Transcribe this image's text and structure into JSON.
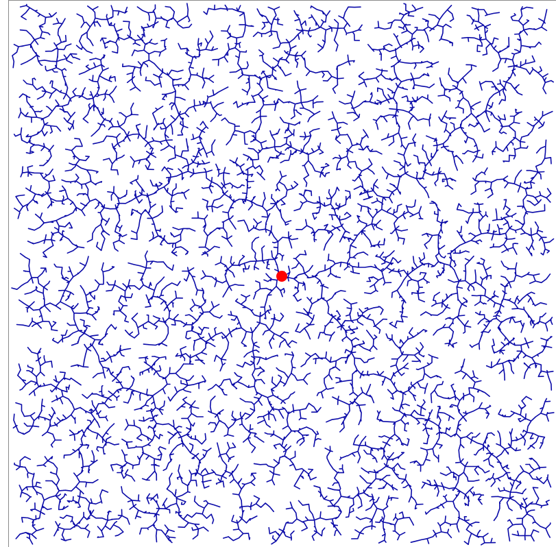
{
  "visualization": {
    "kind": "rapidly-exploring random tree",
    "background_color": "#ffffff",
    "frame_color": "#8a8a8a",
    "tree_color": "#0a0aa8",
    "root_color": "#ff0000",
    "root_marker": "filled-circle",
    "legend": "none",
    "text": "none"
  }
}
